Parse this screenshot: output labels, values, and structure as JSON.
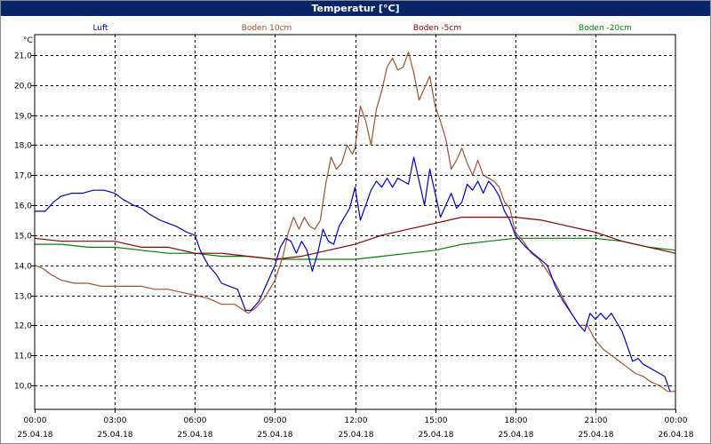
{
  "window": {
    "title": "Temperatur [°C]"
  },
  "chart_data": {
    "type": "line",
    "title": "Temperatur [°C]",
    "unit_label": "°C",
    "ylim": [
      9.7,
      21.6
    ],
    "yticks": [
      "10,0",
      "11,0",
      "12,0",
      "13,0",
      "14,0",
      "15,0",
      "16,0",
      "17,0",
      "18,0",
      "19,0",
      "20,0",
      "21,0"
    ],
    "ytick_values": [
      10,
      11,
      12,
      13,
      14,
      15,
      16,
      17,
      18,
      19,
      20,
      21
    ],
    "xlim": [
      0,
      24
    ],
    "xticks": [
      {
        "time": "00:00",
        "date": "25.04.18",
        "h": 0
      },
      {
        "time": "03:00",
        "date": "25.04.18",
        "h": 3
      },
      {
        "time": "06:00",
        "date": "25.04.18",
        "h": 6
      },
      {
        "time": "09:00",
        "date": "25.04.18",
        "h": 9
      },
      {
        "time": "12:00",
        "date": "25.04.18",
        "h": 12
      },
      {
        "time": "15:00",
        "date": "25.04.18",
        "h": 15
      },
      {
        "time": "18:00",
        "date": "25.04.18",
        "h": 18
      },
      {
        "time": "21:00",
        "date": "25.04.18",
        "h": 21
      },
      {
        "time": "00:00",
        "date": "26.04.18",
        "h": 24
      }
    ],
    "grid": true,
    "legend_position": "top",
    "series": [
      {
        "name": "Luft",
        "color": "#0000c8",
        "points": [
          [
            0,
            15.8
          ],
          [
            0.4,
            15.8
          ],
          [
            0.7,
            16.1
          ],
          [
            1.0,
            16.3
          ],
          [
            1.4,
            16.4
          ],
          [
            1.8,
            16.4
          ],
          [
            2.2,
            16.5
          ],
          [
            2.6,
            16.5
          ],
          [
            3.0,
            16.4
          ],
          [
            3.3,
            16.2
          ],
          [
            3.7,
            16.0
          ],
          [
            4.0,
            15.9
          ],
          [
            4.3,
            15.7
          ],
          [
            4.7,
            15.5
          ],
          [
            5.0,
            15.4
          ],
          [
            5.3,
            15.3
          ],
          [
            5.7,
            15.1
          ],
          [
            6.0,
            15.0
          ],
          [
            6.2,
            14.5
          ],
          [
            6.5,
            14.0
          ],
          [
            6.8,
            13.7
          ],
          [
            7.0,
            13.4
          ],
          [
            7.3,
            13.3
          ],
          [
            7.6,
            13.2
          ],
          [
            7.9,
            12.5
          ],
          [
            8.1,
            12.5
          ],
          [
            8.4,
            12.8
          ],
          [
            8.7,
            13.4
          ],
          [
            9.0,
            14.0
          ],
          [
            9.2,
            14.6
          ],
          [
            9.4,
            14.9
          ],
          [
            9.6,
            14.8
          ],
          [
            9.8,
            14.4
          ],
          [
            10.0,
            14.8
          ],
          [
            10.2,
            14.5
          ],
          [
            10.4,
            13.8
          ],
          [
            10.6,
            14.4
          ],
          [
            10.8,
            15.2
          ],
          [
            11.0,
            14.8
          ],
          [
            11.2,
            14.7
          ],
          [
            11.4,
            15.3
          ],
          [
            11.6,
            15.6
          ],
          [
            11.8,
            15.9
          ],
          [
            12.0,
            16.6
          ],
          [
            12.2,
            15.5
          ],
          [
            12.4,
            16.0
          ],
          [
            12.6,
            16.5
          ],
          [
            12.8,
            16.8
          ],
          [
            13.0,
            16.6
          ],
          [
            13.2,
            16.9
          ],
          [
            13.4,
            16.6
          ],
          [
            13.6,
            16.9
          ],
          [
            13.8,
            16.8
          ],
          [
            14.0,
            16.7
          ],
          [
            14.2,
            17.6
          ],
          [
            14.4,
            16.8
          ],
          [
            14.6,
            16.0
          ],
          [
            14.8,
            17.2
          ],
          [
            15.0,
            16.4
          ],
          [
            15.2,
            15.6
          ],
          [
            15.4,
            16.0
          ],
          [
            15.6,
            16.4
          ],
          [
            15.8,
            15.9
          ],
          [
            16.0,
            16.1
          ],
          [
            16.2,
            16.7
          ],
          [
            16.4,
            16.5
          ],
          [
            16.6,
            16.8
          ],
          [
            16.8,
            16.4
          ],
          [
            17.0,
            16.8
          ],
          [
            17.2,
            16.6
          ],
          [
            17.4,
            16.3
          ],
          [
            17.6,
            15.8
          ],
          [
            17.8,
            15.5
          ],
          [
            18.0,
            15.0
          ],
          [
            18.4,
            14.6
          ],
          [
            18.8,
            14.3
          ],
          [
            19.2,
            14.0
          ],
          [
            19.5,
            13.3
          ],
          [
            19.8,
            12.8
          ],
          [
            20.1,
            12.4
          ],
          [
            20.4,
            12.0
          ],
          [
            20.6,
            11.8
          ],
          [
            20.8,
            12.4
          ],
          [
            21.0,
            12.2
          ],
          [
            21.2,
            12.4
          ],
          [
            21.4,
            12.2
          ],
          [
            21.6,
            12.4
          ],
          [
            21.8,
            12.1
          ],
          [
            22.0,
            11.8
          ],
          [
            22.2,
            11.3
          ],
          [
            22.4,
            10.8
          ],
          [
            22.6,
            10.9
          ],
          [
            22.8,
            10.7
          ],
          [
            23.0,
            10.6
          ],
          [
            23.2,
            10.5
          ],
          [
            23.4,
            10.4
          ],
          [
            23.6,
            10.3
          ],
          [
            23.8,
            9.8
          ]
        ]
      },
      {
        "name": "Boden 10cm",
        "color": "#a0522d",
        "points": [
          [
            0,
            14.0
          ],
          [
            0.3,
            13.9
          ],
          [
            0.6,
            13.7
          ],
          [
            1.0,
            13.5
          ],
          [
            1.5,
            13.4
          ],
          [
            2.0,
            13.4
          ],
          [
            2.5,
            13.3
          ],
          [
            3.0,
            13.3
          ],
          [
            3.5,
            13.3
          ],
          [
            4.0,
            13.3
          ],
          [
            4.5,
            13.2
          ],
          [
            5.0,
            13.2
          ],
          [
            5.5,
            13.1
          ],
          [
            6.0,
            13.0
          ],
          [
            6.5,
            12.9
          ],
          [
            7.0,
            12.7
          ],
          [
            7.5,
            12.7
          ],
          [
            8.0,
            12.4
          ],
          [
            8.3,
            12.6
          ],
          [
            8.6,
            12.9
          ],
          [
            9.0,
            13.5
          ],
          [
            9.3,
            14.3
          ],
          [
            9.5,
            15.1
          ],
          [
            9.7,
            15.6
          ],
          [
            9.9,
            15.2
          ],
          [
            10.1,
            15.6
          ],
          [
            10.3,
            15.3
          ],
          [
            10.5,
            15.2
          ],
          [
            10.7,
            15.5
          ],
          [
            10.9,
            16.7
          ],
          [
            11.1,
            17.6
          ],
          [
            11.3,
            17.2
          ],
          [
            11.5,
            17.4
          ],
          [
            11.7,
            18.0
          ],
          [
            11.9,
            17.7
          ],
          [
            12.0,
            17.9
          ],
          [
            12.2,
            19.3
          ],
          [
            12.4,
            18.8
          ],
          [
            12.6,
            18.0
          ],
          [
            12.8,
            19.2
          ],
          [
            13.0,
            19.8
          ],
          [
            13.2,
            20.6
          ],
          [
            13.4,
            20.9
          ],
          [
            13.6,
            20.5
          ],
          [
            13.8,
            20.6
          ],
          [
            14.0,
            21.1
          ],
          [
            14.2,
            20.4
          ],
          [
            14.4,
            19.5
          ],
          [
            14.6,
            19.9
          ],
          [
            14.8,
            20.3
          ],
          [
            15.0,
            19.3
          ],
          [
            15.2,
            18.8
          ],
          [
            15.4,
            18.2
          ],
          [
            15.6,
            17.2
          ],
          [
            15.8,
            17.5
          ],
          [
            16.0,
            17.9
          ],
          [
            16.2,
            17.4
          ],
          [
            16.4,
            17.0
          ],
          [
            16.6,
            17.5
          ],
          [
            16.8,
            17.0
          ],
          [
            17.0,
            16.9
          ],
          [
            17.2,
            16.8
          ],
          [
            17.4,
            16.6
          ],
          [
            17.6,
            16.1
          ],
          [
            17.8,
            15.9
          ],
          [
            18.0,
            15.1
          ],
          [
            18.3,
            14.8
          ],
          [
            18.6,
            14.4
          ],
          [
            18.9,
            14.2
          ],
          [
            19.2,
            13.8
          ],
          [
            19.5,
            13.4
          ],
          [
            19.8,
            12.9
          ],
          [
            20.1,
            12.4
          ],
          [
            20.4,
            12.0
          ],
          [
            20.7,
            12.0
          ],
          [
            21.0,
            11.5
          ],
          [
            21.3,
            11.2
          ],
          [
            21.6,
            11.0
          ],
          [
            21.9,
            10.8
          ],
          [
            22.2,
            10.6
          ],
          [
            22.5,
            10.4
          ],
          [
            22.8,
            10.3
          ],
          [
            23.1,
            10.1
          ],
          [
            23.4,
            10.0
          ],
          [
            23.7,
            9.8
          ],
          [
            24.0,
            9.8
          ]
        ]
      },
      {
        "name": "Boden -5cm",
        "color": "#8b0000",
        "points": [
          [
            0,
            14.9
          ],
          [
            1.0,
            14.8
          ],
          [
            2.0,
            14.8
          ],
          [
            3.0,
            14.8
          ],
          [
            3.5,
            14.7
          ],
          [
            4.0,
            14.6
          ],
          [
            5.0,
            14.6
          ],
          [
            6.0,
            14.4
          ],
          [
            7.0,
            14.4
          ],
          [
            8.0,
            14.3
          ],
          [
            9.0,
            14.2
          ],
          [
            10.0,
            14.3
          ],
          [
            11.0,
            14.5
          ],
          [
            12.0,
            14.7
          ],
          [
            13.0,
            15.0
          ],
          [
            14.0,
            15.2
          ],
          [
            15.0,
            15.4
          ],
          [
            16.0,
            15.6
          ],
          [
            17.0,
            15.6
          ],
          [
            18.0,
            15.6
          ],
          [
            19.0,
            15.5
          ],
          [
            20.0,
            15.3
          ],
          [
            21.0,
            15.1
          ],
          [
            22.0,
            14.8
          ],
          [
            23.0,
            14.6
          ],
          [
            24.0,
            14.4
          ]
        ]
      },
      {
        "name": "Boden -20cm",
        "color": "#008000",
        "points": [
          [
            0,
            14.7
          ],
          [
            1.0,
            14.7
          ],
          [
            2.0,
            14.6
          ],
          [
            3.0,
            14.6
          ],
          [
            4.0,
            14.5
          ],
          [
            5.0,
            14.4
          ],
          [
            6.0,
            14.4
          ],
          [
            7.0,
            14.3
          ],
          [
            8.0,
            14.3
          ],
          [
            9.0,
            14.2
          ],
          [
            10.0,
            14.2
          ],
          [
            11.0,
            14.2
          ],
          [
            12.0,
            14.2
          ],
          [
            13.0,
            14.3
          ],
          [
            14.0,
            14.4
          ],
          [
            15.0,
            14.5
          ],
          [
            16.0,
            14.7
          ],
          [
            17.0,
            14.8
          ],
          [
            18.0,
            14.9
          ],
          [
            19.0,
            14.9
          ],
          [
            20.0,
            14.9
          ],
          [
            21.0,
            14.9
          ],
          [
            22.0,
            14.8
          ],
          [
            23.0,
            14.6
          ],
          [
            24.0,
            14.5
          ]
        ]
      }
    ]
  }
}
